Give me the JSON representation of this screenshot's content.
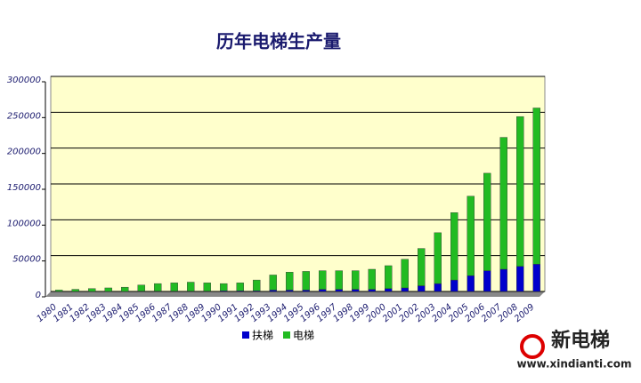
{
  "chart_data": {
    "type": "bar",
    "stacked": true,
    "title": "历年电梯生产量",
    "categories": [
      "1980",
      "1981",
      "1982",
      "1983",
      "1984",
      "1985",
      "1986",
      "1987",
      "1988",
      "1989",
      "1990",
      "1991",
      "1992",
      "1993",
      "1994",
      "1995",
      "1996",
      "1997",
      "1998",
      "1999",
      "2000",
      "2001",
      "2002",
      "2003",
      "2004",
      "2005",
      "2006",
      "2007",
      "2008",
      "2009"
    ],
    "series": [
      {
        "name": "扶梯",
        "color": "#0000cc",
        "values": [
          0,
          0,
          0,
          0,
          0,
          500,
          500,
          500,
          500,
          500,
          1000,
          1000,
          1000,
          2000,
          2000,
          2000,
          3000,
          3000,
          3000,
          3000,
          4000,
          5000,
          8000,
          11000,
          16000,
          22000,
          29000,
          31000,
          35000,
          38000
        ]
      },
      {
        "name": "电梯",
        "color": "#22bb22",
        "values": [
          2000,
          3000,
          4000,
          5000,
          6000,
          8500,
          10500,
          11500,
          12500,
          11500,
          10000,
          11000,
          15000,
          21000,
          25000,
          26000,
          26000,
          26000,
          26000,
          28000,
          32000,
          40000,
          52000,
          71000,
          94000,
          111000,
          136000,
          184000,
          209000,
          218000
        ]
      }
    ],
    "ylim": [
      0,
      300000
    ],
    "yticks": [
      0,
      50000,
      100000,
      150000,
      200000,
      250000,
      300000
    ],
    "grid": true,
    "legend": "bottom"
  },
  "logo": {
    "name": "新电梯",
    "url": "www.xindianti.com"
  }
}
